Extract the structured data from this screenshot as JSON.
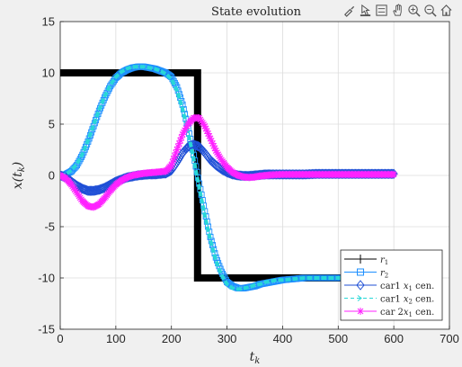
{
  "toolbar": {
    "icons": [
      "brush-icon",
      "data-tips-icon",
      "legend-icon",
      "pan-icon",
      "zoom-in-icon",
      "zoom-out-icon",
      "home-icon"
    ]
  },
  "colors": {
    "background": "#f0f0f0",
    "plot_bg": "#ffffff",
    "grid": "#dcdcdc",
    "r1": "#000000",
    "r2": "#1e90ff",
    "car1_x1": "#1f4fd6",
    "car1_x2": "#28d7d7",
    "car2_x1": "#ff22ff"
  },
  "chart_data": {
    "type": "line",
    "title": "State evolution",
    "xlabel": "t",
    "xlabel_sub": "k",
    "ylabel": "x(t",
    "ylabel_sub": "k",
    "ylabel_close": ")",
    "xlim": [
      0,
      700
    ],
    "ylim": [
      -15,
      15
    ],
    "xticks": [
      0,
      100,
      200,
      300,
      400,
      500,
      600,
      700
    ],
    "yticks": [
      -15,
      -10,
      -5,
      0,
      5,
      10,
      15
    ],
    "grid": true,
    "legend_position": "bottom-right",
    "series": [
      {
        "name": "r1",
        "label_main": "r",
        "label_sub": "1",
        "style": "thick-black",
        "x": [
          0,
          247,
          247,
          247,
          600
        ],
        "y": [
          10,
          10,
          0,
          -10,
          -10
        ]
      },
      {
        "name": "r2",
        "label_main": "r",
        "label_sub": "2",
        "style": "square",
        "x": [
          0,
          10,
          20,
          30,
          40,
          50,
          60,
          70,
          80,
          90,
          100,
          110,
          120,
          130,
          140,
          150,
          160,
          170,
          180,
          190,
          200,
          210,
          220,
          230,
          240,
          250,
          260,
          270,
          280,
          290,
          300,
          310,
          320,
          330,
          340,
          350,
          360,
          370,
          380,
          390,
          400,
          420,
          440,
          460,
          480,
          500,
          520,
          540,
          560,
          580,
          600
        ],
        "y": [
          0,
          0.1,
          0.4,
          1.0,
          2.0,
          3.3,
          4.8,
          6.3,
          7.6,
          8.7,
          9.5,
          10.0,
          10.3,
          10.5,
          10.6,
          10.6,
          10.5,
          10.4,
          10.2,
          10.0,
          9.6,
          8.6,
          6.9,
          4.6,
          2.0,
          -0.8,
          -3.5,
          -6.0,
          -8.0,
          -9.4,
          -10.4,
          -10.8,
          -11.0,
          -11.0,
          -10.9,
          -10.8,
          -10.6,
          -10.5,
          -10.4,
          -10.3,
          -10.2,
          -10.1,
          -10.0,
          -10.0,
          -10.0,
          -10.0,
          -10.0,
          -10.0,
          -10.0,
          -10.0,
          -10.0
        ]
      },
      {
        "name": "car1 x1 cen.",
        "label_main": "car1 ",
        "label_var": "x",
        "label_sub": "1",
        "label_end": " cen.",
        "style": "diamond",
        "x": [
          0,
          10,
          20,
          30,
          40,
          50,
          60,
          70,
          80,
          90,
          100,
          110,
          120,
          130,
          140,
          150,
          160,
          170,
          180,
          190,
          200,
          210,
          220,
          230,
          240,
          250,
          260,
          270,
          280,
          290,
          300,
          310,
          320,
          330,
          340,
          350,
          360,
          370,
          380,
          400,
          420,
          440,
          460,
          480,
          500,
          520,
          540,
          560,
          580,
          600
        ],
        "y": [
          0,
          -0.2,
          -0.6,
          -1.0,
          -1.3,
          -1.5,
          -1.5,
          -1.4,
          -1.2,
          -0.9,
          -0.6,
          -0.4,
          -0.2,
          -0.1,
          0.0,
          0.05,
          0.1,
          0.1,
          0.15,
          0.2,
          0.5,
          1.3,
          2.2,
          2.8,
          3.0,
          2.8,
          2.2,
          1.5,
          1.0,
          0.6,
          0.3,
          0.1,
          0.0,
          -0.05,
          -0.05,
          0.0,
          0.05,
          0.1,
          0.1,
          0.1,
          0.1,
          0.1,
          0.15,
          0.15,
          0.15,
          0.15,
          0.15,
          0.15,
          0.15,
          0.15
        ]
      },
      {
        "name": "car1 x2 cen.",
        "label_main": "car1 ",
        "label_var": "x",
        "label_sub": "2",
        "label_end": " cen.",
        "style": "dashed-cyan",
        "x": [
          0,
          10,
          20,
          30,
          40,
          50,
          60,
          70,
          80,
          90,
          100,
          110,
          120,
          130,
          140,
          150,
          160,
          170,
          180,
          190,
          200,
          210,
          220,
          230,
          240,
          250,
          260,
          270,
          280,
          290,
          300,
          310,
          320,
          330,
          340,
          350,
          360,
          370,
          380,
          390,
          400,
          420,
          440,
          460,
          480,
          500,
          520,
          540,
          560,
          580,
          600
        ],
        "y": [
          0,
          0.1,
          0.5,
          1.1,
          2.1,
          3.4,
          4.9,
          6.4,
          7.7,
          8.8,
          9.6,
          10.1,
          10.4,
          10.6,
          10.6,
          10.6,
          10.5,
          10.4,
          10.2,
          9.9,
          9.4,
          8.3,
          6.5,
          4.2,
          1.6,
          -1.2,
          -3.9,
          -6.3,
          -8.3,
          -9.7,
          -10.6,
          -11.0,
          -11.1,
          -11.0,
          -10.9,
          -10.7,
          -10.6,
          -10.4,
          -10.3,
          -10.2,
          -10.2,
          -10.1,
          -10.0,
          -10.0,
          -10.0,
          -10.0,
          -10.0,
          -10.0,
          -10.0,
          -10.0,
          -10.0
        ]
      },
      {
        "name": "car 2x1 cen.",
        "label_main": "car 2",
        "label_var": "x",
        "label_sub": "1",
        "label_end": " cen.",
        "style": "star-magenta",
        "x": [
          0,
          10,
          20,
          30,
          40,
          50,
          60,
          70,
          80,
          90,
          100,
          110,
          120,
          130,
          140,
          150,
          160,
          170,
          180,
          190,
          200,
          210,
          220,
          230,
          240,
          250,
          260,
          270,
          280,
          290,
          300,
          310,
          320,
          330,
          340,
          350,
          360,
          370,
          380,
          400,
          420,
          440,
          460,
          480,
          500,
          520,
          540,
          560,
          580,
          600
        ],
        "y": [
          0,
          -0.3,
          -0.9,
          -1.7,
          -2.5,
          -3.0,
          -3.1,
          -2.8,
          -2.2,
          -1.5,
          -0.9,
          -0.5,
          -0.2,
          0.0,
          0.1,
          0.2,
          0.25,
          0.3,
          0.35,
          0.4,
          1.0,
          2.5,
          4.0,
          5.0,
          5.6,
          5.6,
          4.8,
          3.6,
          2.4,
          1.5,
          0.8,
          0.3,
          0.0,
          -0.15,
          -0.2,
          -0.15,
          -0.05,
          0.0,
          0.05,
          0.1,
          0.1,
          0.1,
          0.1,
          0.1,
          0.1,
          0.1,
          0.1,
          0.1,
          0.1,
          0.1
        ]
      }
    ]
  }
}
